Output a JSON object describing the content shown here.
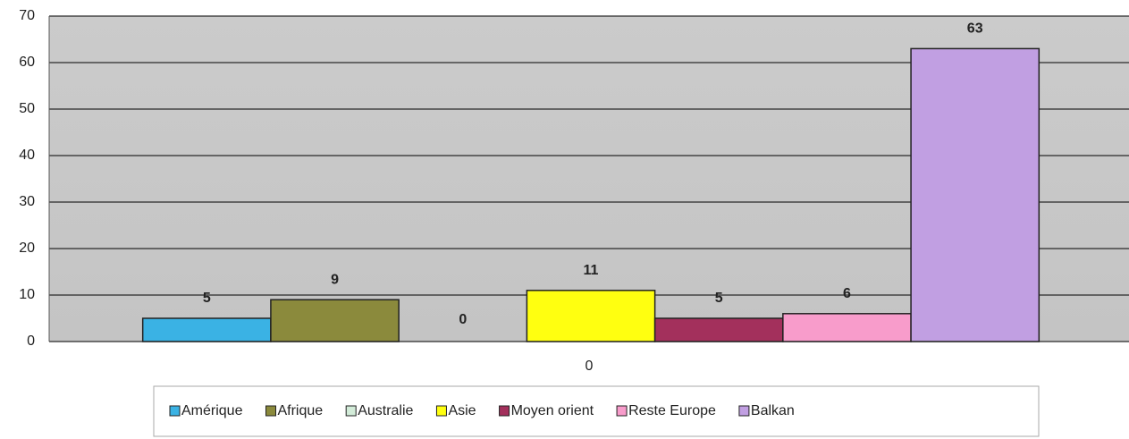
{
  "chart_data": {
    "type": "bar",
    "categories": [
      "0"
    ],
    "series": [
      {
        "name": "Amérique",
        "color": "#3ab2e4",
        "values": [
          5
        ]
      },
      {
        "name": "Afrique",
        "color": "#8b8a3c",
        "values": [
          9
        ]
      },
      {
        "name": "Australie",
        "color": "#d3ecd9",
        "values": [
          0
        ]
      },
      {
        "name": "Asie",
        "color": "#ffff10",
        "values": [
          11
        ]
      },
      {
        "name": "Moyen orient",
        "color": "#a3305c",
        "values": [
          5
        ]
      },
      {
        "name": "Reste Europe",
        "color": "#f89ccb",
        "values": [
          6
        ]
      },
      {
        "name": "Balkan",
        "color": "#c19fe2",
        "values": [
          63
        ]
      }
    ],
    "ylim": [
      0,
      70
    ],
    "yticks": [
      0,
      10,
      20,
      30,
      40,
      50,
      60,
      70
    ],
    "grid": true,
    "legend": "bottom"
  }
}
